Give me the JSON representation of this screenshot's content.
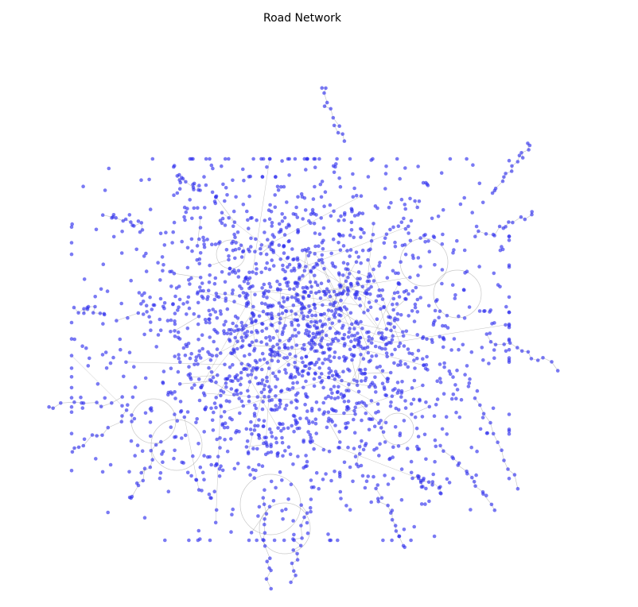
{
  "title": "Road Network",
  "graph": {
    "node_color": "#3333ee",
    "node_opacity": 0.65,
    "edge_color": "#9a9a9a",
    "edge_opacity": 0.6,
    "layout": "force-directed",
    "node_count_estimate": 2000
  }
}
